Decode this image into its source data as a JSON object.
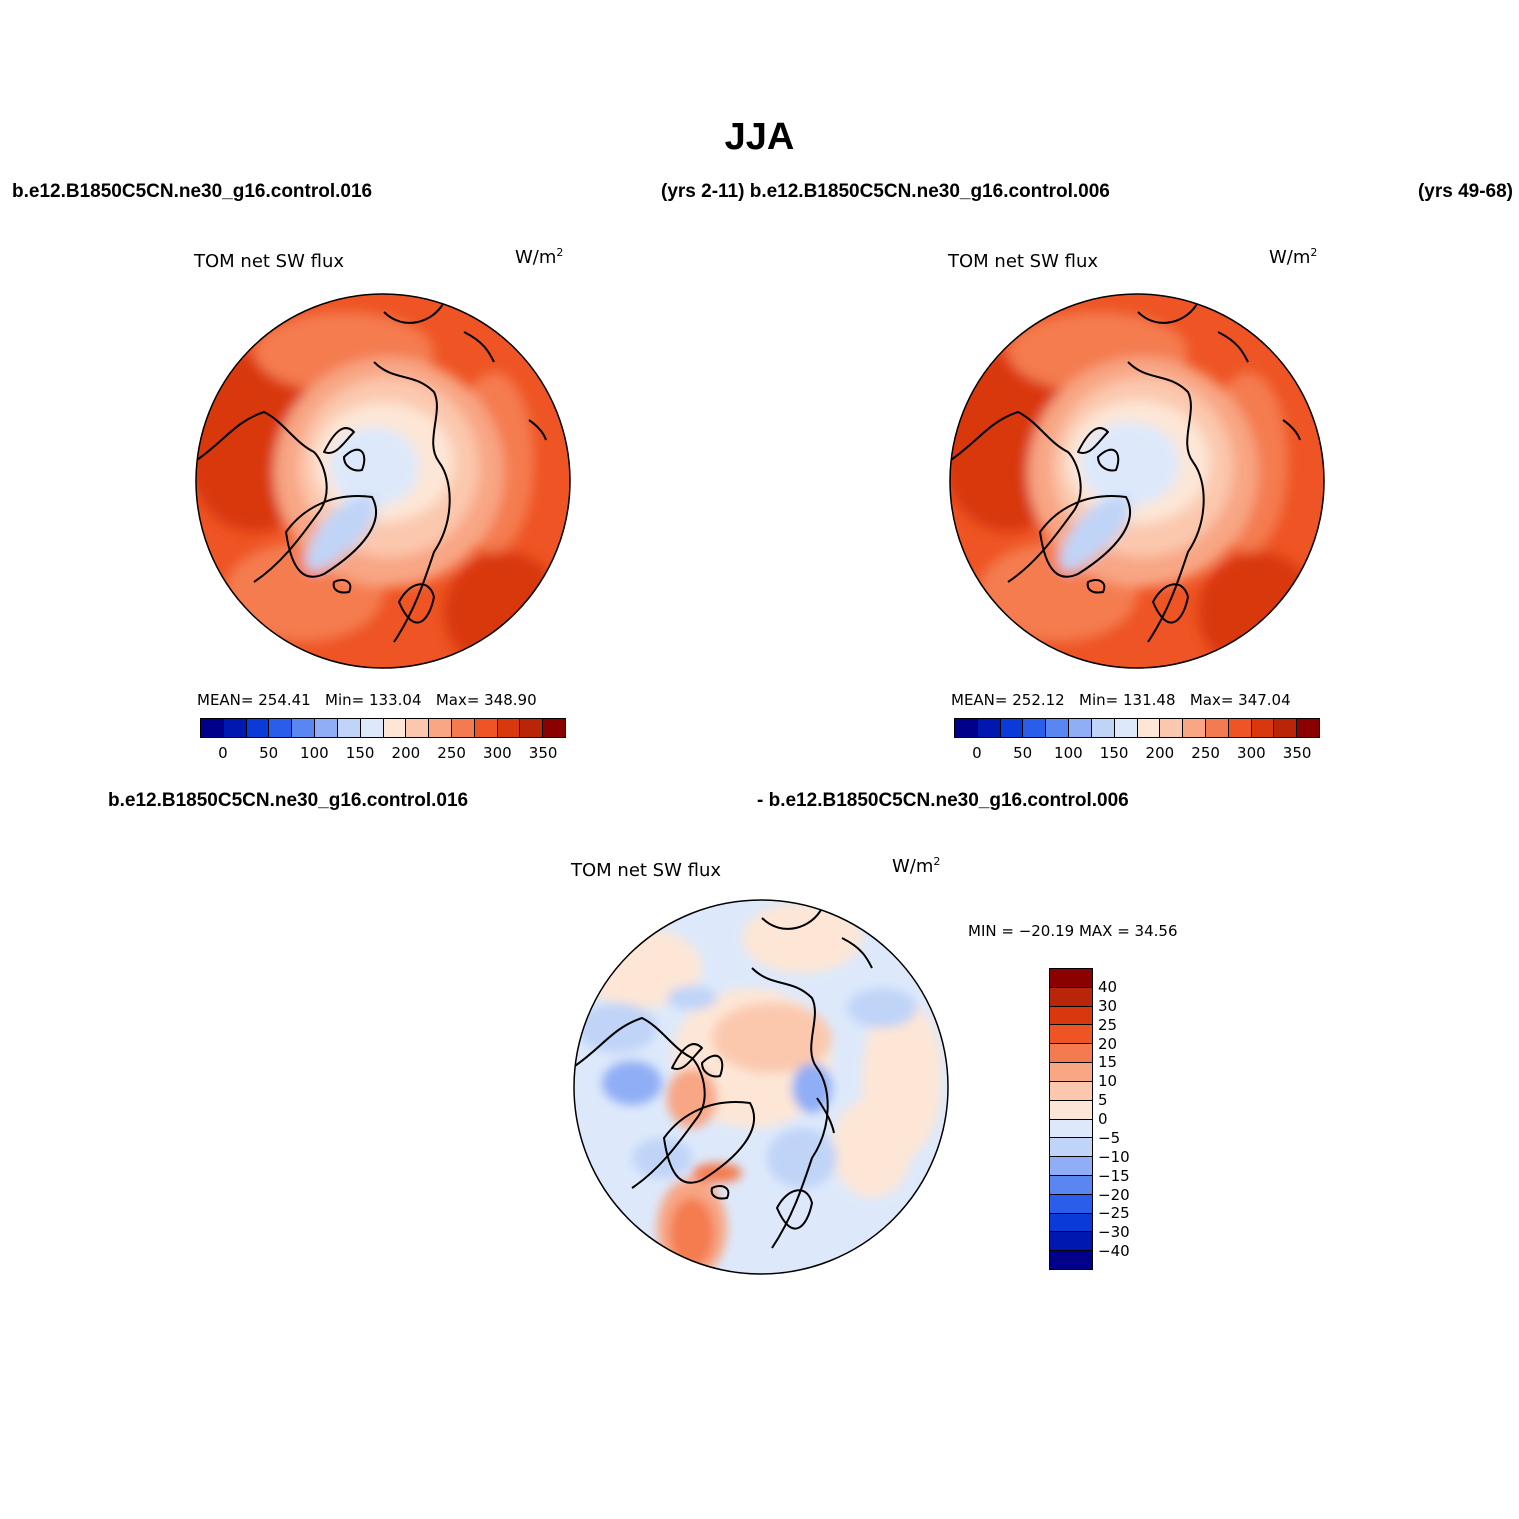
{
  "title": "JJA",
  "header_top": {
    "case1": "b.e12.B1850C5CN.ne30_g16.control.016",
    "years1_case2": "(yrs 2-11) b.e12.B1850C5CN.ne30_g16.control.006",
    "years2": "(yrs 49-68)"
  },
  "header_diff": {
    "case1": "b.e12.B1850C5CN.ne30_g16.control.016",
    "case2": "- b.e12.B1850C5CN.ne30_g16.control.006"
  },
  "panels": [
    {
      "variable": "TOM net SW flux",
      "units_base": "W/m",
      "units_exp": "2",
      "mean_label": "MEAN= 254.41",
      "min_label": "Min= 133.04",
      "max_label": "Max= 348.90"
    },
    {
      "variable": "TOM net SW flux",
      "units_base": "W/m",
      "units_exp": "2",
      "mean_label": "MEAN= 252.12",
      "min_label": "Min= 131.48",
      "max_label": "Max= 347.04"
    },
    {
      "variable": "TOM net SW flux",
      "units_base": "W/m",
      "units_exp": "2",
      "minmax_label": "MIN = −20.19 MAX =  34.56"
    }
  ],
  "colorbar_abs": {
    "colors": [
      "#00008b",
      "#0018b0",
      "#0a3ad8",
      "#2a5eea",
      "#5a86f2",
      "#90aef5",
      "#c0d4f8",
      "#dde9fb",
      "#fde6d6",
      "#fbc8ae",
      "#f8a684",
      "#f47b50",
      "#ee5424",
      "#d9380e",
      "#b82508",
      "#8b0000"
    ],
    "tick_labels": [
      "0",
      "50",
      "100",
      "150",
      "200",
      "250",
      "300",
      "350"
    ]
  },
  "colorbar_diff": {
    "colors": [
      "#00008b",
      "#0018b0",
      "#0a3ad8",
      "#2a5eea",
      "#5a86f2",
      "#90aef5",
      "#c0d4f8",
      "#dde9fb",
      "#fde6d6",
      "#fbc8ae",
      "#f8a684",
      "#f47b50",
      "#ee5424",
      "#d9380e",
      "#b82508",
      "#8b0000"
    ],
    "tick_labels": [
      "−40",
      "−30",
      "−25",
      "−20",
      "−15",
      "−10",
      "−5",
      "0",
      "5",
      "10",
      "15",
      "20",
      "25",
      "30",
      "40"
    ]
  }
}
